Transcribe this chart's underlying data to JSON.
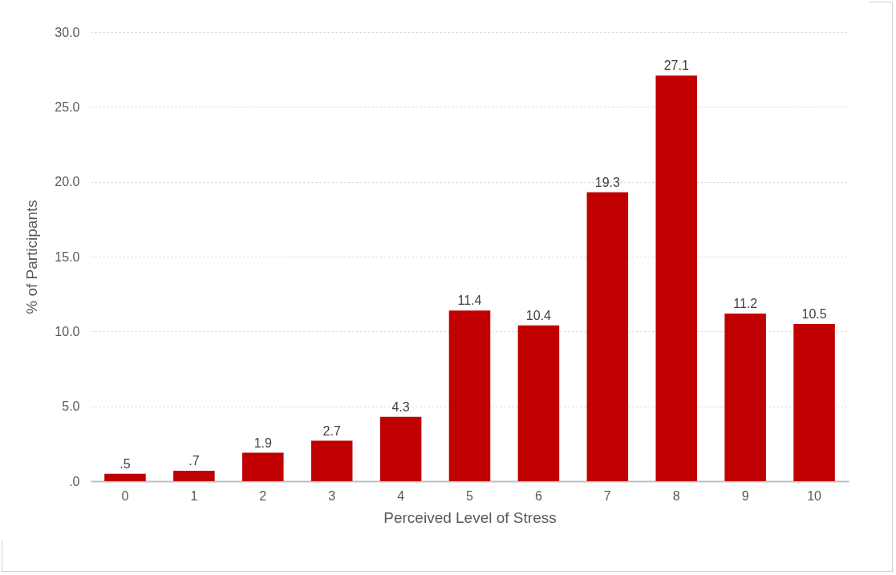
{
  "chart_data": {
    "type": "bar",
    "xlabel": "Perceived Level of Stress",
    "ylabel": "% of Participants",
    "categories": [
      "0",
      "1",
      "2",
      "3",
      "4",
      "5",
      "6",
      "7",
      "8",
      "9",
      "10"
    ],
    "values": [
      0.5,
      0.7,
      1.9,
      2.7,
      4.3,
      11.4,
      10.4,
      19.3,
      27.1,
      11.2,
      10.5
    ],
    "value_labels": [
      ".5",
      ".7",
      "1.9",
      "2.7",
      "4.3",
      "11.4",
      "10.4",
      "19.3",
      "27.1",
      "11.2",
      "10.5"
    ],
    "color": "#c00000",
    "ylim": [
      0,
      30
    ],
    "yticks": [
      {
        "value": 0,
        "label": ".0"
      },
      {
        "value": 5,
        "label": "5.0"
      },
      {
        "value": 10,
        "label": "10.0"
      },
      {
        "value": 15,
        "label": "15.0"
      },
      {
        "value": 20,
        "label": "20.0"
      },
      {
        "value": 25,
        "label": "25.0"
      },
      {
        "value": 30,
        "label": "30.0"
      }
    ],
    "grid": "y"
  }
}
